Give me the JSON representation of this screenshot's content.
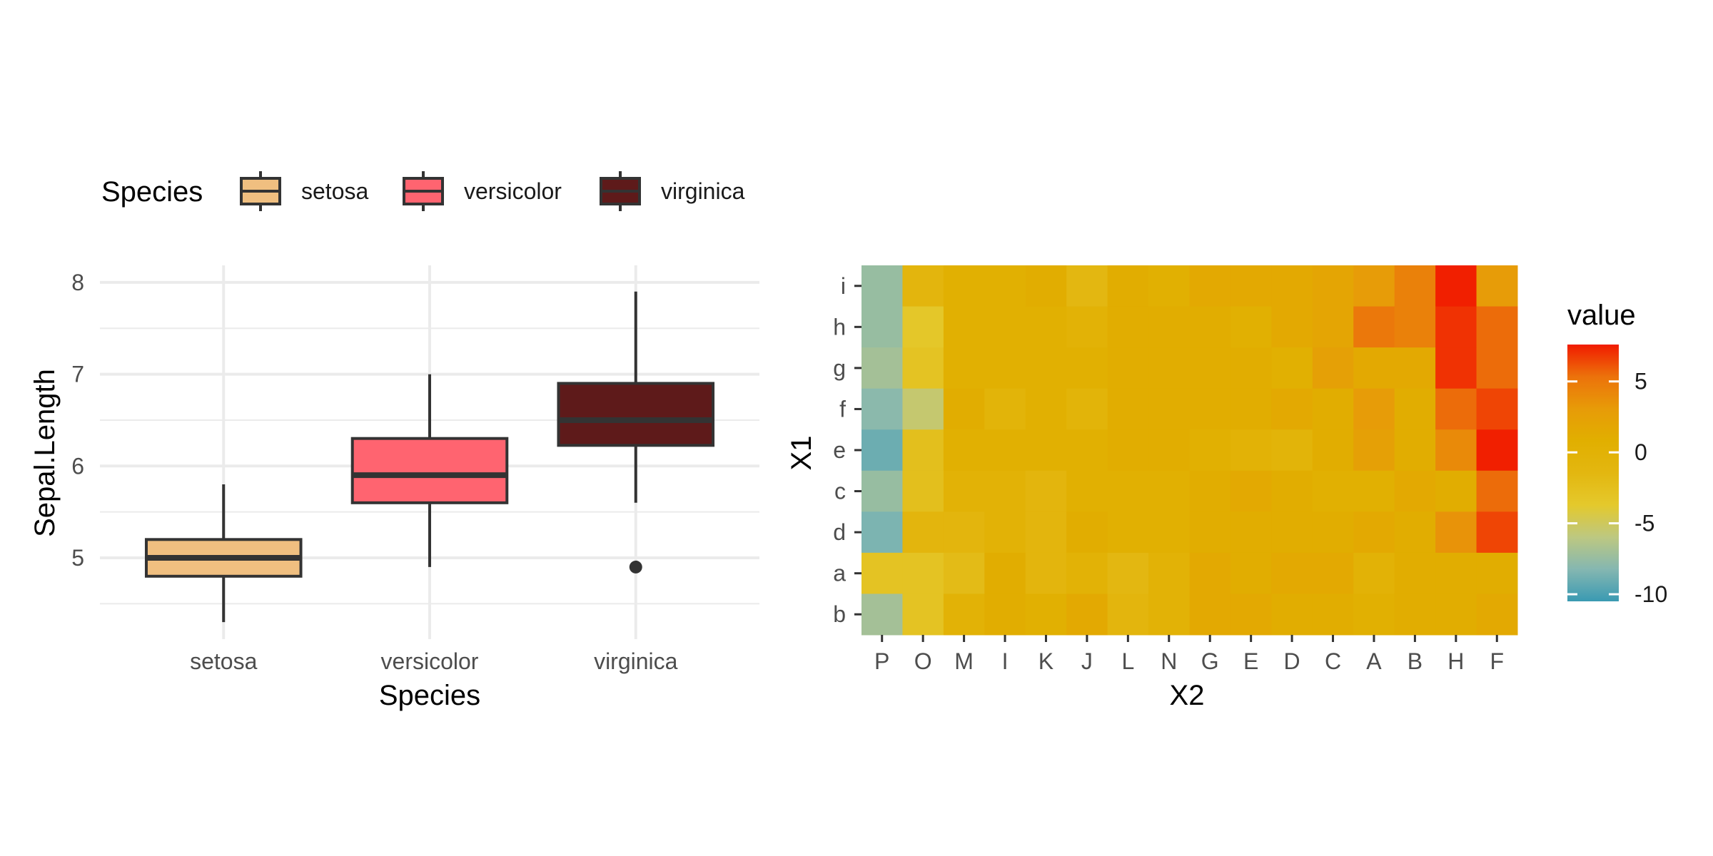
{
  "chart_data": [
    {
      "type": "box",
      "xlabel": "Species",
      "ylabel": "Sepal.Length",
      "ylim": [
        4.3,
        8.0
      ],
      "y_ticks": [
        5,
        6,
        7,
        8
      ],
      "grid": true,
      "legend": {
        "title": "Species",
        "position": "top",
        "entries": [
          "setosa",
          "versicolor",
          "virginica"
        ]
      },
      "categories": [
        "setosa",
        "versicolor",
        "virginica"
      ],
      "boxes": [
        {
          "category": "setosa",
          "lower_whisker": 4.3,
          "q1": 4.8,
          "median": 5.0,
          "q3": 5.2,
          "upper_whisker": 5.8,
          "outliers": [],
          "fill": "#F0BF80"
        },
        {
          "category": "versicolor",
          "lower_whisker": 4.9,
          "q1": 5.6,
          "median": 5.9,
          "q3": 6.3,
          "upper_whisker": 7.0,
          "outliers": [],
          "fill": "#FF6470"
        },
        {
          "category": "virginica",
          "lower_whisker": 5.6,
          "q1": 6.225,
          "median": 6.5,
          "q3": 6.9,
          "upper_whisker": 7.9,
          "outliers": [
            4.9
          ],
          "fill": "#5E1A1A"
        }
      ]
    },
    {
      "type": "heatmap",
      "xlabel": "X2",
      "ylabel": "X1",
      "x_categories": [
        "P",
        "O",
        "M",
        "I",
        "K",
        "J",
        "L",
        "N",
        "G",
        "E",
        "D",
        "C",
        "A",
        "B",
        "H",
        "F"
      ],
      "y_categories": [
        "i",
        "h",
        "g",
        "f",
        "e",
        "c",
        "d",
        "a",
        "b"
      ],
      "values": [
        [
          -7.5,
          -1.0,
          0.5,
          0.5,
          1.0,
          -1.5,
          1.0,
          0.5,
          1.5,
          1.5,
          1.5,
          2.0,
          3.0,
          4.5,
          7.5,
          3.0
        ],
        [
          -7.5,
          -3.5,
          0.5,
          0.5,
          0.5,
          0.0,
          1.0,
          1.0,
          1.0,
          0.5,
          1.5,
          2.0,
          5.0,
          4.5,
          7.0,
          5.5
        ],
        [
          -7.0,
          -3.0,
          0.5,
          0.5,
          0.5,
          0.5,
          1.0,
          1.0,
          1.0,
          1.0,
          0.5,
          2.5,
          1.5,
          1.5,
          7.0,
          5.5
        ],
        [
          -8.0,
          -5.5,
          1.0,
          -0.5,
          0.5,
          -0.5,
          1.0,
          1.0,
          1.0,
          1.0,
          1.5,
          1.0,
          3.0,
          1.0,
          5.5,
          6.5
        ],
        [
          -9.0,
          -2.5,
          0.5,
          0.5,
          0.5,
          0.5,
          1.0,
          1.0,
          0.5,
          0.0,
          -0.5,
          1.0,
          2.5,
          1.0,
          4.0,
          7.5
        ],
        [
          -7.5,
          -2.5,
          0.0,
          0.0,
          -1.0,
          0.5,
          0.5,
          0.5,
          1.0,
          1.5,
          1.0,
          0.5,
          0.5,
          1.5,
          1.0,
          5.5
        ],
        [
          -8.5,
          -1.0,
          -1.0,
          0.0,
          -1.0,
          1.0,
          0.5,
          0.5,
          1.0,
          1.0,
          1.0,
          1.0,
          1.5,
          1.0,
          3.5,
          6.5
        ],
        [
          -3.0,
          -3.0,
          -2.0,
          1.0,
          -1.0,
          0.0,
          -1.5,
          0.0,
          1.5,
          1.0,
          1.5,
          1.5,
          0.0,
          1.0,
          1.0,
          1.0
        ],
        [
          -7.0,
          -3.0,
          0.0,
          1.0,
          0.5,
          1.5,
          -1.0,
          0.0,
          1.5,
          1.5,
          1.0,
          1.0,
          0.5,
          1.0,
          1.0,
          1.5
        ]
      ],
      "colorbar": {
        "title": "value",
        "range": [
          -10.5,
          7.6
        ],
        "ticks": [
          5,
          0,
          -5,
          -10
        ],
        "colors": [
          "#3A9AB2",
          "#85B7B1",
          "#BDC881",
          "#E4C92C",
          "#E3B710",
          "#E1AF00",
          "#E79B08",
          "#EC720B",
          "#F11B00"
        ]
      }
    }
  ]
}
